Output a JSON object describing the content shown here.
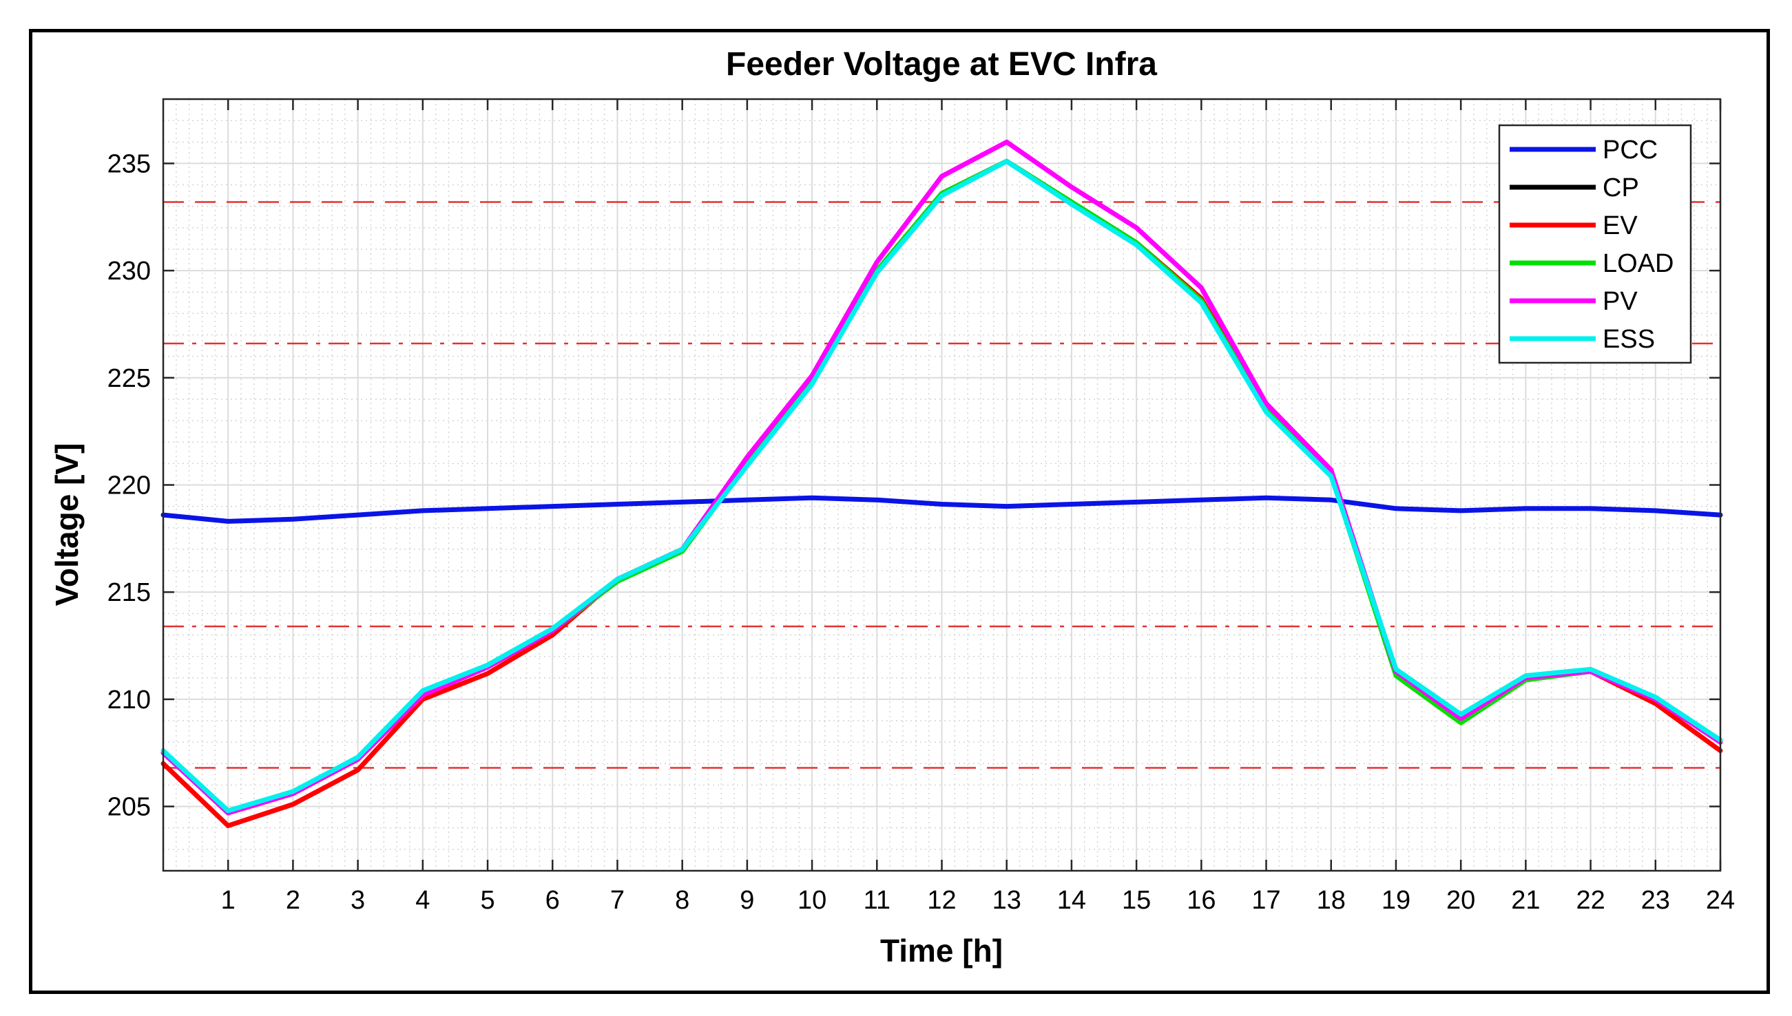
{
  "chart_data": {
    "type": "line",
    "title": "Feeder Voltage at EVC Infra",
    "xlabel": "Time [h]",
    "ylabel": "Voltage [V]",
    "xlim": [
      0,
      24
    ],
    "ylim": [
      202,
      238
    ],
    "xticks": [
      1,
      2,
      3,
      4,
      5,
      6,
      7,
      8,
      9,
      10,
      11,
      12,
      13,
      14,
      15,
      16,
      17,
      18,
      19,
      20,
      21,
      22,
      23,
      24
    ],
    "yticks": [
      205,
      210,
      215,
      220,
      225,
      230,
      235
    ],
    "grid": "on",
    "legend_position": "top-right",
    "x": [
      0,
      1,
      2,
      3,
      4,
      5,
      6,
      7,
      8,
      9,
      10,
      11,
      12,
      13,
      14,
      15,
      16,
      17,
      18,
      19,
      20,
      21,
      22,
      23,
      24
    ],
    "reference_lines": [
      {
        "value": 233.2,
        "style": "dashed",
        "color": "#e53030"
      },
      {
        "value": 226.6,
        "style": "dashdot",
        "color": "#e53030"
      },
      {
        "value": 213.4,
        "style": "dashdot",
        "color": "#e53030"
      },
      {
        "value": 206.8,
        "style": "dashed",
        "color": "#e53030"
      }
    ],
    "series": [
      {
        "name": "PCC",
        "color": "#0a14e6",
        "values": [
          218.6,
          218.3,
          218.4,
          218.6,
          218.8,
          218.9,
          219.0,
          219.1,
          219.2,
          219.3,
          219.4,
          219.3,
          219.1,
          219.0,
          219.1,
          219.2,
          219.3,
          219.4,
          219.3,
          218.9,
          218.8,
          218.9,
          218.9,
          218.8,
          218.6
        ]
      },
      {
        "name": "CP",
        "color": "#000000",
        "values": [
          207.5,
          204.7,
          205.6,
          207.2,
          210.2,
          211.5,
          213.2,
          215.6,
          217.0,
          221.0,
          224.8,
          230.0,
          233.6,
          235.1,
          233.2,
          231.3,
          228.7,
          223.5,
          220.5,
          211.3,
          209.1,
          211.0,
          211.3,
          210.0,
          208.0
        ]
      },
      {
        "name": "EV",
        "color": "#ff0000",
        "values": [
          207.0,
          204.1,
          205.1,
          206.7,
          210.0,
          211.2,
          213.0,
          215.6,
          217.0,
          221.0,
          224.8,
          230.0,
          233.6,
          235.1,
          233.2,
          231.3,
          228.7,
          223.5,
          220.5,
          211.3,
          209.1,
          211.0,
          211.3,
          209.8,
          207.6
        ]
      },
      {
        "name": "LOAD",
        "color": "#00e000",
        "values": [
          207.5,
          204.7,
          205.6,
          207.2,
          210.2,
          211.5,
          213.2,
          215.5,
          216.9,
          221.0,
          224.8,
          230.0,
          233.6,
          235.1,
          233.2,
          231.3,
          228.6,
          223.5,
          220.5,
          211.1,
          208.9,
          210.9,
          211.3,
          210.0,
          208.0
        ]
      },
      {
        "name": "PV",
        "color": "#ff00ff",
        "values": [
          207.5,
          204.7,
          205.6,
          207.2,
          210.2,
          211.5,
          213.2,
          215.6,
          217.0,
          221.3,
          225.1,
          230.4,
          234.4,
          236.0,
          233.9,
          232.0,
          229.2,
          223.8,
          220.7,
          211.3,
          209.1,
          211.0,
          211.3,
          210.0,
          208.0
        ]
      },
      {
        "name": "ESS",
        "color": "#00f0ee",
        "values": [
          207.6,
          204.8,
          205.7,
          207.3,
          210.4,
          211.6,
          213.3,
          215.6,
          217.0,
          220.9,
          224.7,
          229.9,
          233.5,
          235.1,
          233.1,
          231.2,
          228.5,
          223.4,
          220.4,
          211.4,
          209.3,
          211.1,
          211.4,
          210.1,
          208.1
        ]
      }
    ]
  }
}
